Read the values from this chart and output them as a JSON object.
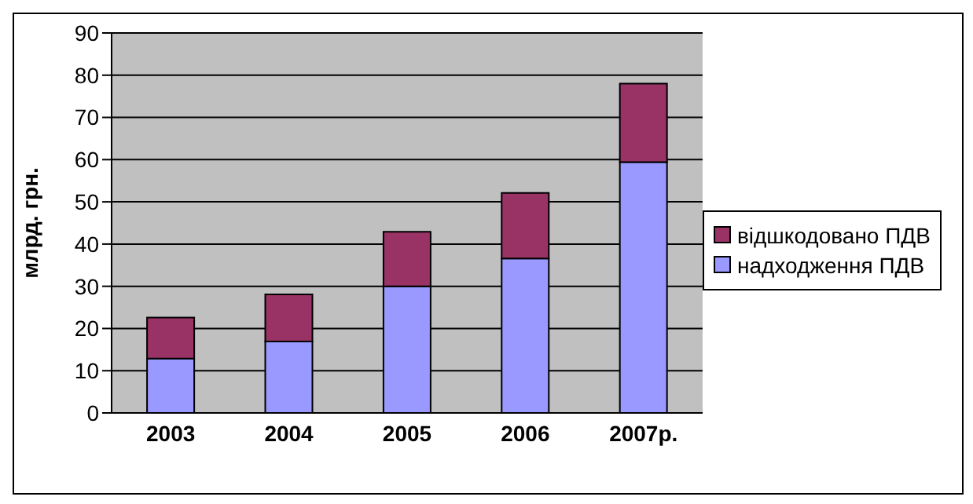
{
  "chart_data": {
    "type": "bar",
    "ylabel": "млрд. грн.",
    "categories": [
      "2003",
      "2004",
      "2005",
      "2006",
      "2007р."
    ],
    "stacked": true,
    "series": [
      {
        "name": "надходження ПДВ",
        "color": "#9999ff",
        "values": [
          12.9,
          16.9,
          30,
          36.6,
          59.4
        ]
      },
      {
        "name": "відшкодовано ПДВ",
        "color": "#993366",
        "values": [
          9.7,
          11.2,
          12.9,
          15.5,
          18.6
        ]
      }
    ],
    "ylim": [
      0,
      90
    ],
    "yticks": [
      0,
      10,
      20,
      30,
      40,
      50,
      60,
      70,
      80,
      90
    ],
    "grid": "y",
    "legend": "right"
  }
}
